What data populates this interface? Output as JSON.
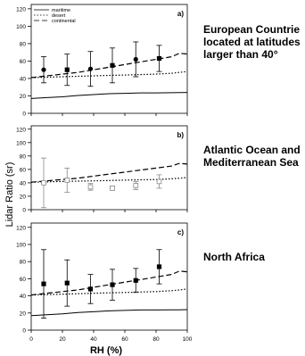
{
  "chart_data": {
    "type": "line",
    "ylabel": "Lidar Ratio (sr)",
    "xlabel": "RH (%)",
    "x_ticks": [
      0,
      20,
      40,
      60,
      80,
      100
    ],
    "y_ticks": [
      0,
      20,
      40,
      60,
      80,
      100,
      120
    ],
    "xlim": [
      0,
      100
    ],
    "ylim": [
      0,
      125
    ],
    "legend": {
      "placement": "top-left",
      "entries": [
        {
          "name": "maritime",
          "style": "solid"
        },
        {
          "name": "desert",
          "style": "dotted"
        },
        {
          "name": "continental",
          "style": "dashed"
        }
      ]
    },
    "model_curves": {
      "x": [
        0,
        10,
        20,
        30,
        40,
        50,
        60,
        70,
        80,
        90,
        95,
        100
      ],
      "maritime": [
        17,
        18,
        19,
        20.5,
        21.5,
        22.5,
        23,
        23.5,
        23.5,
        23.7,
        23.8,
        24
      ],
      "desert": [
        41,
        41.5,
        42,
        42.5,
        43,
        43.5,
        44,
        44.5,
        45,
        46,
        47,
        48
      ],
      "continental": [
        41,
        43,
        45,
        47,
        50,
        53,
        56,
        59,
        62,
        65,
        69,
        68
      ]
    },
    "panels": [
      {
        "label": "a)",
        "region": "European Countrie\nlocated at latitudes\nlarger than 40°",
        "show_legend": true,
        "show_models": [
          "maritime",
          "desert",
          "continental"
        ],
        "points": [
          {
            "x": 8,
            "y": 50,
            "err": 15,
            "symbol": "circle-filled"
          },
          {
            "x": 23,
            "y": 50,
            "err": 18,
            "symbol": "square-filled"
          },
          {
            "x": 38,
            "y": 51,
            "err": 20,
            "symbol": "circle-filled"
          },
          {
            "x": 52,
            "y": 55,
            "err": 20,
            "symbol": "square-filled"
          },
          {
            "x": 67,
            "y": 62,
            "err": 20,
            "symbol": "circle-filled"
          },
          {
            "x": 82,
            "y": 63,
            "err": 15,
            "symbol": "square-filled"
          }
        ]
      },
      {
        "label": "b)",
        "region": "Atlantic Ocean and\nMediterranean Sea",
        "show_legend": false,
        "show_models": [
          "desert",
          "continental"
        ],
        "points": [
          {
            "x": 8,
            "y": 40,
            "err": 37,
            "symbol": "square-open"
          },
          {
            "x": 23,
            "y": 44,
            "err": 18,
            "symbol": "square-open"
          },
          {
            "x": 38,
            "y": 34,
            "err": 5,
            "symbol": "square-open"
          },
          {
            "x": 52,
            "y": 32,
            "err": 3,
            "symbol": "square-open"
          },
          {
            "x": 67,
            "y": 36,
            "err": 6,
            "symbol": "square-open"
          },
          {
            "x": 82,
            "y": 42,
            "err": 10,
            "symbol": "square-open"
          }
        ]
      },
      {
        "label": "c)",
        "region": "North Africa",
        "show_legend": false,
        "show_models": [
          "maritime",
          "desert",
          "continental"
        ],
        "points": [
          {
            "x": 8,
            "y": 54,
            "err": 40,
            "symbol": "square-filled"
          },
          {
            "x": 23,
            "y": 55,
            "err": 27,
            "symbol": "square-filled"
          },
          {
            "x": 38,
            "y": 48,
            "err": 17,
            "symbol": "square-filled"
          },
          {
            "x": 52,
            "y": 53,
            "err": 18,
            "symbol": "square-filled"
          },
          {
            "x": 67,
            "y": 58,
            "err": 14,
            "symbol": "square-filled"
          },
          {
            "x": 82,
            "y": 74,
            "err": 20,
            "symbol": "square-filled"
          }
        ]
      }
    ]
  }
}
